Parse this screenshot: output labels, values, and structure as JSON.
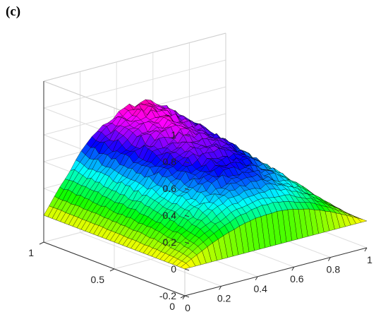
{
  "panel_label": "(c)",
  "chart_data": {
    "type": "surface",
    "title": "",
    "xlabel": "",
    "ylabel": "",
    "zlabel": "",
    "xlim": [
      0,
      1
    ],
    "ylim": [
      0,
      1
    ],
    "zlim": [
      -0.2,
      1
    ],
    "grid": true,
    "x_ticks": [
      "0",
      "0.2",
      "0.4",
      "0.6",
      "0.8",
      "1"
    ],
    "y_ticks": [
      "0",
      "0.5",
      "1"
    ],
    "z_ticks": [
      "-0.2",
      "0",
      "0.2",
      "0.4",
      "0.6",
      "0.8",
      "1"
    ],
    "x_tick_values": [
      0,
      0.2,
      0.4,
      0.6,
      0.8,
      1
    ],
    "y_tick_values": [
      0,
      0.5,
      1
    ],
    "z_tick_values": [
      -0.2,
      0,
      0.2,
      0.4,
      0.6,
      0.8,
      1
    ],
    "surface": "z ≈ sin(π·x)·(y)^0.3 with noise; peak ≈ 0.65 at x≈0.5, y=1; z=0 along x=0, x=1 and y=0",
    "z_peak": 0.65,
    "colormap": "hsv",
    "edge_color": "#000000"
  }
}
